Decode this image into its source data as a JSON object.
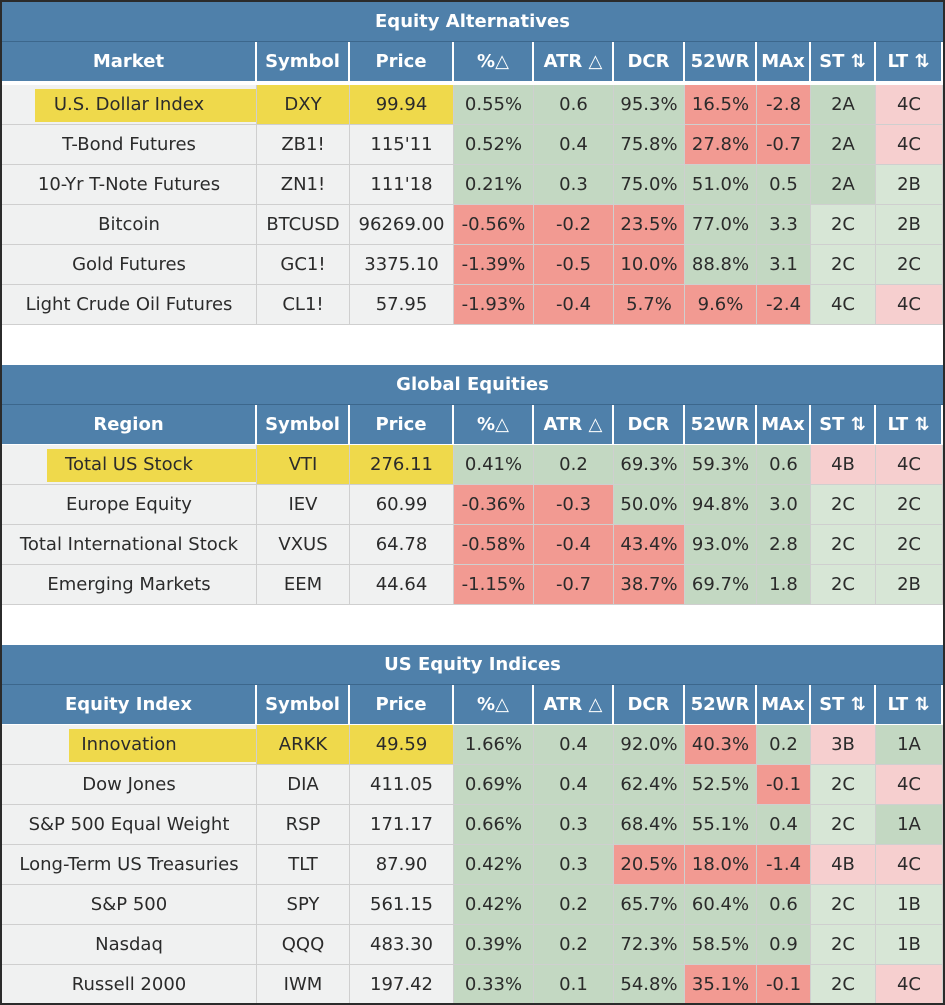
{
  "sections": [
    {
      "title": "Equity Alternatives",
      "headers": [
        "Market",
        "Symbol",
        "Price",
        "%△",
        "ATR △",
        "DCR",
        "52WR",
        "MAx",
        "ST ⇅",
        "LT ⇅"
      ],
      "rows": [
        {
          "name": "U.S. Dollar Index",
          "symbol": "DXY",
          "price": "99.94",
          "pct": "0.55%",
          "atr": "0.6",
          "dcr": "95.3%",
          "wr": "16.5%",
          "max": "-2.8",
          "st": "2A",
          "lt": "4C"
        },
        {
          "name": "T-Bond Futures",
          "symbol": "ZB1!",
          "price": "115'11",
          "pct": "0.52%",
          "atr": "0.4",
          "dcr": "75.8%",
          "wr": "27.8%",
          "max": "-0.7",
          "st": "2A",
          "lt": "4C"
        },
        {
          "name": "10-Yr T-Note Futures",
          "symbol": "ZN1!",
          "price": "111'18",
          "pct": "0.21%",
          "atr": "0.3",
          "dcr": "75.0%",
          "wr": "51.0%",
          "max": "0.5",
          "st": "2A",
          "lt": "2B"
        },
        {
          "name": "Bitcoin",
          "symbol": "BTCUSD",
          "price": "96269.00",
          "pct": "-0.56%",
          "atr": "-0.2",
          "dcr": "23.5%",
          "wr": "77.0%",
          "max": "3.3",
          "st": "2C",
          "lt": "2B"
        },
        {
          "name": "Gold Futures",
          "symbol": "GC1!",
          "price": "3375.10",
          "pct": "-1.39%",
          "atr": "-0.5",
          "dcr": "10.0%",
          "wr": "88.8%",
          "max": "3.1",
          "st": "2C",
          "lt": "2C"
        },
        {
          "name": "Light Crude Oil Futures",
          "symbol": "CL1!",
          "price": "57.95",
          "pct": "-1.93%",
          "atr": "-0.4",
          "dcr": "5.7%",
          "wr": "9.6%",
          "max": "-2.4",
          "st": "4C",
          "lt": "4C"
        }
      ]
    },
    {
      "title": "Global Equities",
      "headers": [
        "Region",
        "Symbol",
        "Price",
        "%△",
        "ATR △",
        "DCR",
        "52WR",
        "MAx",
        "ST ⇅",
        "LT ⇅"
      ],
      "rows": [
        {
          "name": "Total US Stock",
          "symbol": "VTI",
          "price": "276.11",
          "pct": "0.41%",
          "atr": "0.2",
          "dcr": "69.3%",
          "wr": "59.3%",
          "max": "0.6",
          "st": "4B",
          "lt": "4C"
        },
        {
          "name": "Europe Equity",
          "symbol": "IEV",
          "price": "60.99",
          "pct": "-0.36%",
          "atr": "-0.3",
          "dcr": "50.0%",
          "wr": "94.8%",
          "max": "3.0",
          "st": "2C",
          "lt": "2C"
        },
        {
          "name": "Total International Stock",
          "symbol": "VXUS",
          "price": "64.78",
          "pct": "-0.58%",
          "atr": "-0.4",
          "dcr": "43.4%",
          "wr": "93.0%",
          "max": "2.8",
          "st": "2C",
          "lt": "2C"
        },
        {
          "name": "Emerging Markets",
          "symbol": "EEM",
          "price": "44.64",
          "pct": "-1.15%",
          "atr": "-0.7",
          "dcr": "38.7%",
          "wr": "69.7%",
          "max": "1.8",
          "st": "2C",
          "lt": "2B"
        }
      ]
    },
    {
      "title": "US Equity Indices",
      "headers": [
        "Equity Index",
        "Symbol",
        "Price",
        "%△",
        "ATR △",
        "DCR",
        "52WR",
        "MAx",
        "ST ⇅",
        "LT ⇅"
      ],
      "rows": [
        {
          "name": "Innovation",
          "symbol": "ARKK",
          "price": "49.59",
          "pct": "1.66%",
          "atr": "0.4",
          "dcr": "92.0%",
          "wr": "40.3%",
          "max": "0.2",
          "st": "3B",
          "lt": "1A"
        },
        {
          "name": "Dow Jones",
          "symbol": "DIA",
          "price": "411.05",
          "pct": "0.69%",
          "atr": "0.4",
          "dcr": "62.4%",
          "wr": "52.5%",
          "max": "-0.1",
          "st": "2C",
          "lt": "4C"
        },
        {
          "name": "S&P 500 Equal Weight",
          "symbol": "RSP",
          "price": "171.17",
          "pct": "0.66%",
          "atr": "0.3",
          "dcr": "68.4%",
          "wr": "55.1%",
          "max": "0.4",
          "st": "2C",
          "lt": "1A"
        },
        {
          "name": "Long-Term US Treasuries",
          "symbol": "TLT",
          "price": "87.90",
          "pct": "0.42%",
          "atr": "0.3",
          "dcr": "20.5%",
          "wr": "18.0%",
          "max": "-1.4",
          "st": "4B",
          "lt": "4C"
        },
        {
          "name": "S&P 500",
          "symbol": "SPY",
          "price": "561.15",
          "pct": "0.42%",
          "atr": "0.2",
          "dcr": "65.7%",
          "wr": "60.4%",
          "max": "0.6",
          "st": "2C",
          "lt": "1B"
        },
        {
          "name": "Nasdaq",
          "symbol": "QQQ",
          "price": "483.30",
          "pct": "0.39%",
          "atr": "0.2",
          "dcr": "72.3%",
          "wr": "58.5%",
          "max": "0.9",
          "st": "2C",
          "lt": "1B"
        },
        {
          "name": "Russell 2000",
          "symbol": "IWM",
          "price": "197.42",
          "pct": "0.33%",
          "atr": "0.1",
          "dcr": "54.8%",
          "wr": "35.1%",
          "max": "-0.1",
          "st": "2C",
          "lt": "4C"
        }
      ]
    }
  ],
  "colors": {
    "header_blue": "#4f80aa",
    "highlight_yellow": "#efd94b",
    "positive_green": "#c3d8c2",
    "negative_red": "#f29a92",
    "light_green": "#d7e6d6",
    "light_red": "#f6cfcf",
    "neutral_gray": "#f0f1f1"
  }
}
